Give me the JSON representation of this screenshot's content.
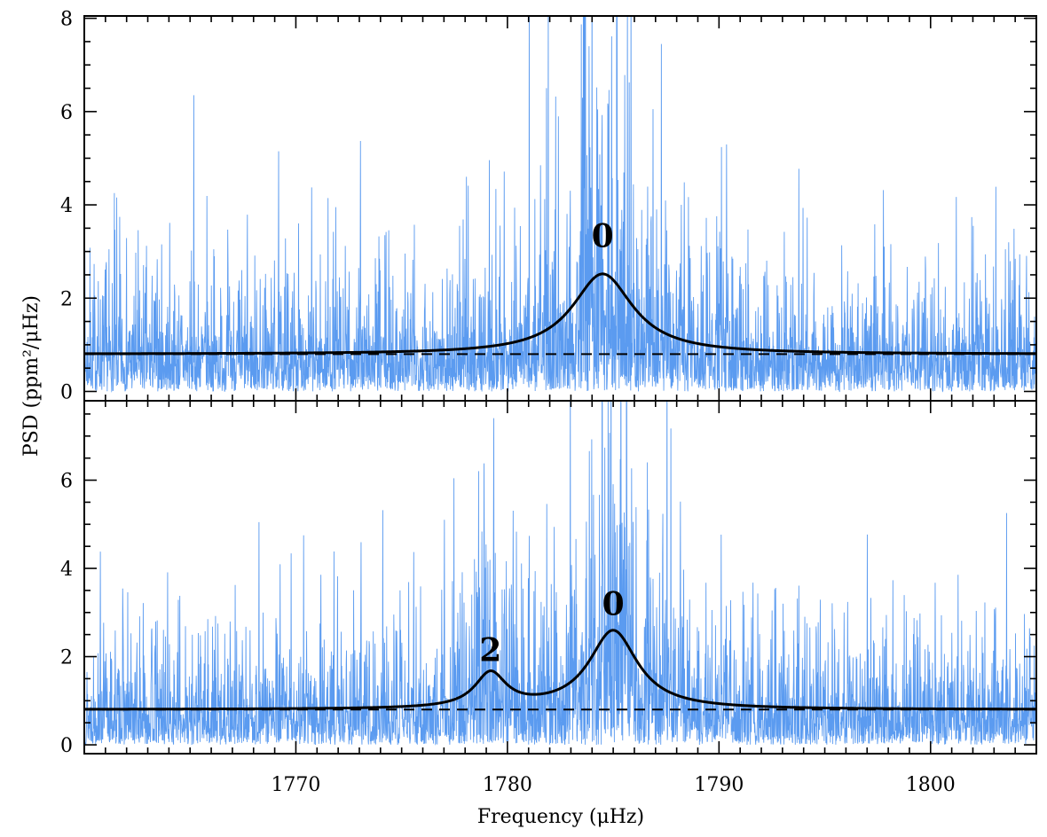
{
  "chart_data": {
    "type": "line",
    "xlabel": "Frequency (μHz)",
    "ylabel": "PSD (ppm²/μHz)",
    "xlim": [
      1760,
      1805
    ],
    "x_ticks": [
      1770,
      1780,
      1790,
      1800
    ],
    "x_tick_labels": [
      "1770",
      "1780",
      "1790",
      "1800"
    ],
    "colors": {
      "spectrum": "#5b9bf0",
      "fit": "#000000",
      "background": "#000000"
    },
    "panels": [
      {
        "name": "top",
        "ylim": [
          -0.2,
          8.05
        ],
        "y_ticks": [
          0,
          2,
          4,
          6,
          8
        ],
        "y_tick_labels": [
          "0",
          "2",
          "4",
          "6",
          "8"
        ],
        "background_level": 0.8,
        "fit_modes": [
          {
            "degree": "0",
            "center": 1784.5,
            "height": 1.72,
            "width": 3.5
          }
        ],
        "annotations": [
          {
            "text": "0",
            "x": 1784.5,
            "y": 3.1
          }
        ],
        "series": [
          {
            "name": "power spectrum",
            "style": "spectrum",
            "seed": 7
          },
          {
            "name": "Lorentzian fit",
            "style": "fit"
          },
          {
            "name": "background",
            "style": "dashed"
          }
        ]
      },
      {
        "name": "bottom",
        "ylim": [
          -0.2,
          7.8
        ],
        "y_ticks": [
          0,
          2,
          4,
          6
        ],
        "y_tick_labels": [
          "0",
          "2",
          "4",
          "6"
        ],
        "background_level": 0.8,
        "fit_modes": [
          {
            "degree": "2",
            "center": 1779.2,
            "height": 0.78,
            "width": 1.8
          },
          {
            "degree": "0",
            "center": 1785.0,
            "height": 1.78,
            "width": 2.8
          }
        ],
        "annotations": [
          {
            "text": "2",
            "x": 1779.2,
            "y": 1.9
          },
          {
            "text": "0",
            "x": 1785.0,
            "y": 2.95
          }
        ],
        "series": [
          {
            "name": "power spectrum",
            "style": "spectrum",
            "seed": 13
          },
          {
            "name": "Lorentzian fit",
            "style": "fit"
          },
          {
            "name": "background",
            "style": "dashed"
          }
        ]
      }
    ]
  }
}
